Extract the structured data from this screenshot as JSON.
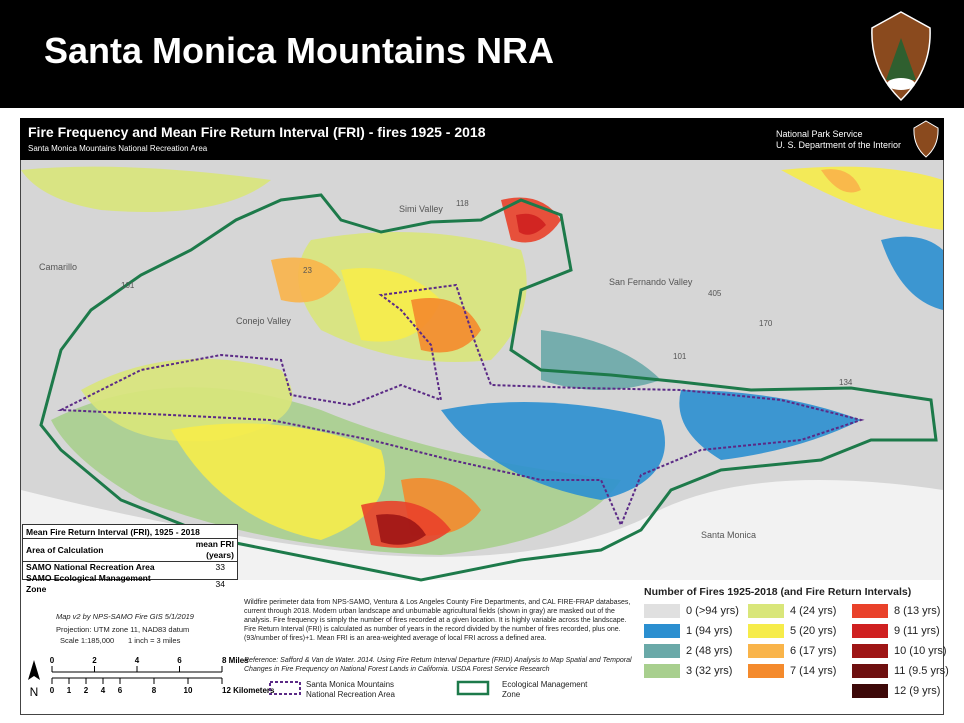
{
  "header": {
    "title": "Santa Monica Mountains NRA"
  },
  "map": {
    "title": "Fire Frequency and Mean Fire Return Interval (FRI) - fires 1925 - 2018",
    "subtitle": "Santa Monica Mountains National Recreation Area",
    "agency": [
      "National Park Service",
      "U. S. Department of the Interior"
    ],
    "places": [
      "Simi Valley",
      "Camarillo",
      "Conejo Valley",
      "San Fernando Valley",
      "Santa Monica"
    ],
    "highways": [
      118,
      101,
      23,
      405,
      170,
      101,
      134
    ]
  },
  "fri_table": {
    "title": "Mean Fire Return Interval (FRI), 1925 - 2018",
    "columns": [
      "Area of Calculation",
      "mean FRI (years)"
    ],
    "rows": [
      [
        "SAMO National Recreation Area",
        33
      ],
      [
        "SAMO Ecological Management Zone",
        34
      ]
    ]
  },
  "credits": [
    "Map v2 by NPS-SAMO Fire GIS 5/1/2019",
    "Projection: UTM zone 11, NAD83 datum",
    "Scale 1:185,000",
    "1 inch = 3 miles"
  ],
  "notes": {
    "text": "Wildfire perimeter data from NPS-SAMO, Ventura & Los Angeles County Fire Departments, and CAL FIRE-FRAP databases, current through 2018. Modern urban landscape and unburnable agricultural fields (shown in gray) are masked out of the analysis. Fire frequency is simply the number of fires recorded at a given location. It is highly variable across the landscape. Fire Return Interval (FRI) is calculated as number of years in the record divided by the number of fires recorded, plus one. (93/number of fires)+1. Mean FRI is an area-weighted average of local FRI across a defined area.",
    "reference": "Reference: Safford & Van de Water. 2014. Using Fire Return Interval Departure (FRID) Analysis to Map Spatial and Temporal Changes in Fire Frequency on National Forest Lands in California. USDA Forest Service Research"
  },
  "scale": {
    "north": "N",
    "miles": [
      0,
      2,
      4,
      6,
      "8 Miles"
    ],
    "km": [
      0,
      1,
      2,
      4,
      6,
      8,
      10,
      "12 Kilometers"
    ]
  },
  "boundaries": [
    {
      "label": "Santa Monica Mountains National Recreation Area"
    },
    {
      "label": "Ecological Management Zone"
    }
  ],
  "legend": {
    "title": "Number of Fires 1925-2018 (and Fire Return Intervals)",
    "items": [
      {
        "label": "0 (>94 yrs)",
        "color": "#e0e0e0"
      },
      {
        "label": "1 (94 yrs)",
        "color": "#2b8fd0"
      },
      {
        "label": "2 (48 yrs)",
        "color": "#6aa9a8"
      },
      {
        "label": "3 (32 yrs)",
        "color": "#a8cf8e"
      },
      {
        "label": "4 (24 yrs)",
        "color": "#d9e67a"
      },
      {
        "label": "5 (20 yrs)",
        "color": "#f6ec4a"
      },
      {
        "label": "6 (17 yrs)",
        "color": "#f9b44a"
      },
      {
        "label": "7 (14 yrs)",
        "color": "#f48a2c"
      },
      {
        "label": "8 (13 yrs)",
        "color": "#e9412a"
      },
      {
        "label": "9 (11 yrs)",
        "color": "#cf2020"
      },
      {
        "label": "10 (10 yrs)",
        "color": "#9e1515"
      },
      {
        "label": "11 (9.5 yrs)",
        "color": "#6e0f0f"
      },
      {
        "label": "12 (9 yrs)",
        "color": "#3d0808"
      }
    ]
  }
}
